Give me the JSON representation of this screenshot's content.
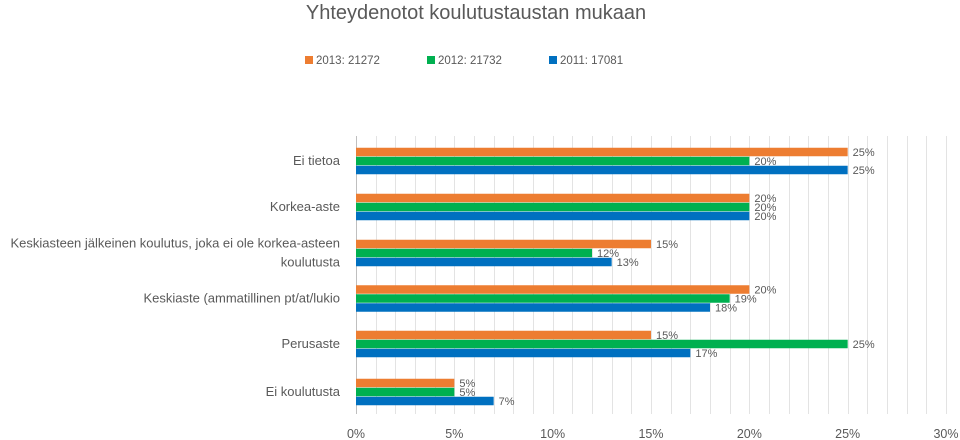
{
  "chart_data": {
    "type": "bar",
    "orientation": "horizontal",
    "title": "Yhteydenotot koulutustaustan mukaan",
    "categories": [
      "Ei tietoa",
      "Korkea-aste",
      "Keskiasteen jälkeinen koulutus, joka ei ole korkea-asteen koulutusta",
      "Keskiaste (ammatillinen pt/at/lukio",
      "Perusaste",
      "Ei koulutusta"
    ],
    "category_lines": [
      [
        "Ei tietoa"
      ],
      [
        "Korkea-aste"
      ],
      [
        "Keskiasteen jälkeinen koulutus, joka ei ole korkea-asteen",
        "koulutusta"
      ],
      [
        "Keskiaste (ammatillinen pt/at/lukio"
      ],
      [
        "Perusaste"
      ],
      [
        "Ei koulutusta"
      ]
    ],
    "series": [
      {
        "name": "2013: 21272",
        "color": "#ED7D31",
        "values": [
          25,
          20,
          15,
          20,
          15,
          5
        ]
      },
      {
        "name": "2012: 21732",
        "color": "#00B050",
        "values": [
          20,
          20,
          12,
          19,
          25,
          5
        ]
      },
      {
        "name": "2011: 17081",
        "color": "#0070C0",
        "values": [
          25,
          20,
          13,
          18,
          17,
          7
        ]
      }
    ],
    "xlim": [
      0,
      30
    ],
    "xticks": [
      "0%",
      "5%",
      "10%",
      "15%",
      "20%",
      "25%",
      "30%"
    ],
    "value_suffix": "%",
    "grid": true,
    "legend_position": "top"
  }
}
